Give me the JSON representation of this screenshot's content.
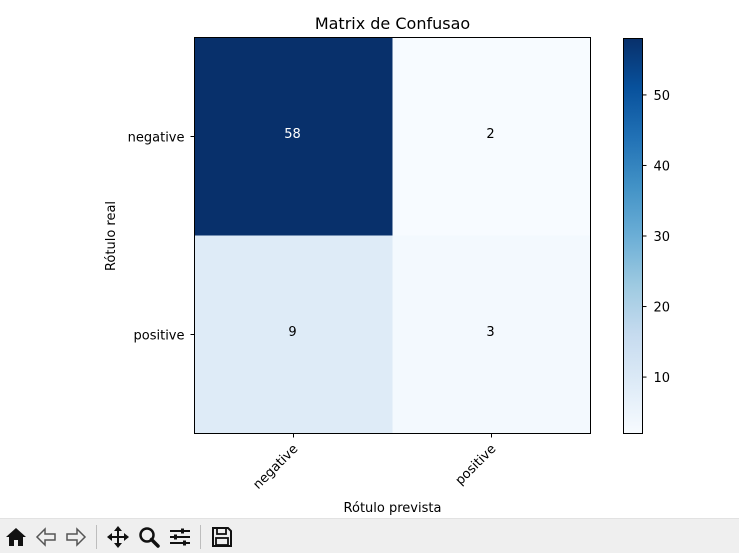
{
  "chart_data": {
    "type": "heatmap",
    "title": "Matrix de Confusao",
    "xlabel": "Rótulo prevista",
    "ylabel": "Rótulo real",
    "x_categories": [
      "negative",
      "positive"
    ],
    "y_categories": [
      "negative",
      "positive"
    ],
    "values": [
      [
        58,
        2
      ],
      [
        9,
        3
      ]
    ],
    "colormap": "Blues",
    "colorbar": {
      "min": 2,
      "max": 58,
      "ticks": [
        10,
        20,
        30,
        40,
        50
      ]
    },
    "grid": false
  },
  "toolbar": {
    "buttons": [
      {
        "name": "home-icon",
        "interactable": true
      },
      {
        "name": "back-arrow-icon",
        "interactable": true
      },
      {
        "name": "forward-arrow-icon",
        "interactable": true
      },
      {
        "name": "pan-icon",
        "interactable": true
      },
      {
        "name": "zoom-icon",
        "interactable": true
      },
      {
        "name": "configure-subplots-icon",
        "interactable": true
      },
      {
        "name": "save-icon",
        "interactable": true
      }
    ]
  }
}
